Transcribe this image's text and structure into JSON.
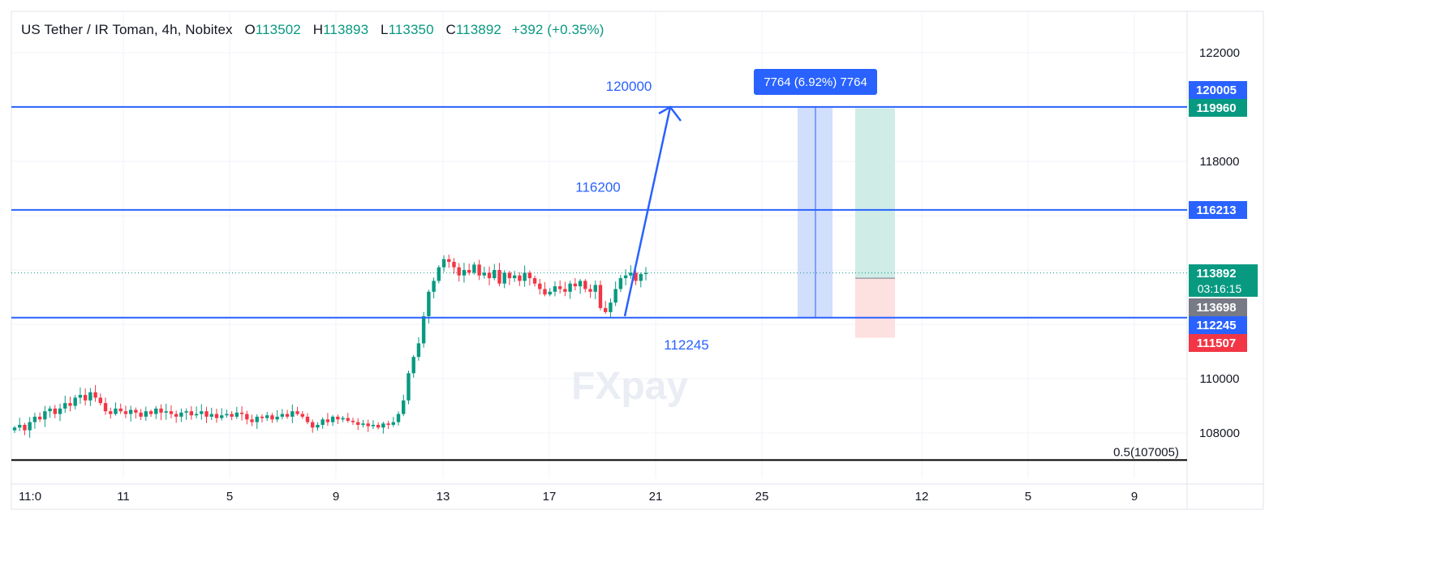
{
  "header": {
    "symbol": "US Tether / IR Toman, 4h, Nobitex",
    "o_label": "O",
    "o_value": "113502",
    "h_label": "H",
    "h_value": "113893",
    "l_label": "L",
    "l_value": "113350",
    "c_label": "C",
    "c_value": "113892",
    "change": "+392 (+0.35%)"
  },
  "colors": {
    "up": "#089981",
    "down": "#f23645",
    "level_line": "#2962ff",
    "annotation_text": "#2962ff",
    "fib_line": "#000000",
    "range_box": "#c9d8fb",
    "target_zone": "#cfece6",
    "stop_zone": "#fde0e0",
    "label_blue": "#2962ff",
    "label_green": "#089981",
    "label_gray": "#787b86",
    "label_red": "#f23645"
  },
  "watermark": "FXpay",
  "chart_data": {
    "type": "candlestick",
    "interval": "4h",
    "ylim": [
      106500,
      123500
    ],
    "y_ticks": [
      108000,
      110000,
      118000,
      122000
    ],
    "x_ticks": [
      "11:0",
      "11",
      "5",
      "9",
      "13",
      "17",
      "21",
      "25",
      "12",
      "5",
      "9"
    ],
    "grid": true,
    "horizontal_levels": [
      120005,
      116213,
      112245
    ],
    "fib_level": {
      "label": "0.5(107005)",
      "value": 107005
    },
    "annotations": [
      "120000",
      "116200",
      "112245"
    ],
    "range_measure_label": "7764 (6.92%) 7764",
    "position_tool": {
      "entry": 113698,
      "target": 119960,
      "stop": 111507
    },
    "price_labels": [
      {
        "value": "120005",
        "kind": "blue"
      },
      {
        "value": "119960",
        "kind": "green"
      },
      {
        "value": "116213",
        "kind": "blue"
      },
      {
        "value": "113892",
        "kind": "green",
        "sub": "03:16:15"
      },
      {
        "value": "113698",
        "kind": "gray"
      },
      {
        "value": "112245",
        "kind": "blue"
      },
      {
        "value": "111507",
        "kind": "red"
      }
    ],
    "last_price": 113892,
    "price_path": [
      108200,
      108300,
      108100,
      108400,
      108600,
      108500,
      108800,
      108900,
      108700,
      108900,
      109100,
      109000,
      109300,
      109400,
      109200,
      109500,
      109300,
      109100,
      108800,
      108700,
      108900,
      108800,
      108700,
      108850,
      108750,
      108600,
      108800,
      108700,
      108900,
      108750,
      108800,
      108700,
      108600,
      108750,
      108800,
      108650,
      108700,
      108800,
      108600,
      108700,
      108550,
      108650,
      108700,
      108600,
      108750,
      108700,
      108500,
      108400,
      108600,
      108550,
      108650,
      108500,
      108600,
      108700,
      108600,
      108800,
      108700,
      108600,
      108400,
      108200,
      108300,
      108500,
      108400,
      108600,
      108500,
      108550,
      108450,
      108400,
      108300,
      108350,
      108250,
      108300,
      108200,
      108350,
      108300,
      108400,
      108700,
      109200,
      110200,
      110800,
      111300,
      112300,
      113200,
      113600,
      114100,
      114400,
      114300,
      114100,
      113800,
      114000,
      113900,
      114200,
      113800,
      113900,
      113700,
      114000,
      113500,
      113900,
      113700,
      113800,
      113600,
      113900,
      113700,
      113500,
      113300,
      113100,
      113200,
      113400,
      113300,
      113200,
      113500,
      113400,
      113600,
      113300,
      113200,
      113450,
      112600,
      112450,
      112800,
      113300,
      113700,
      113800,
      113900,
      113600,
      113850,
      113892
    ]
  }
}
